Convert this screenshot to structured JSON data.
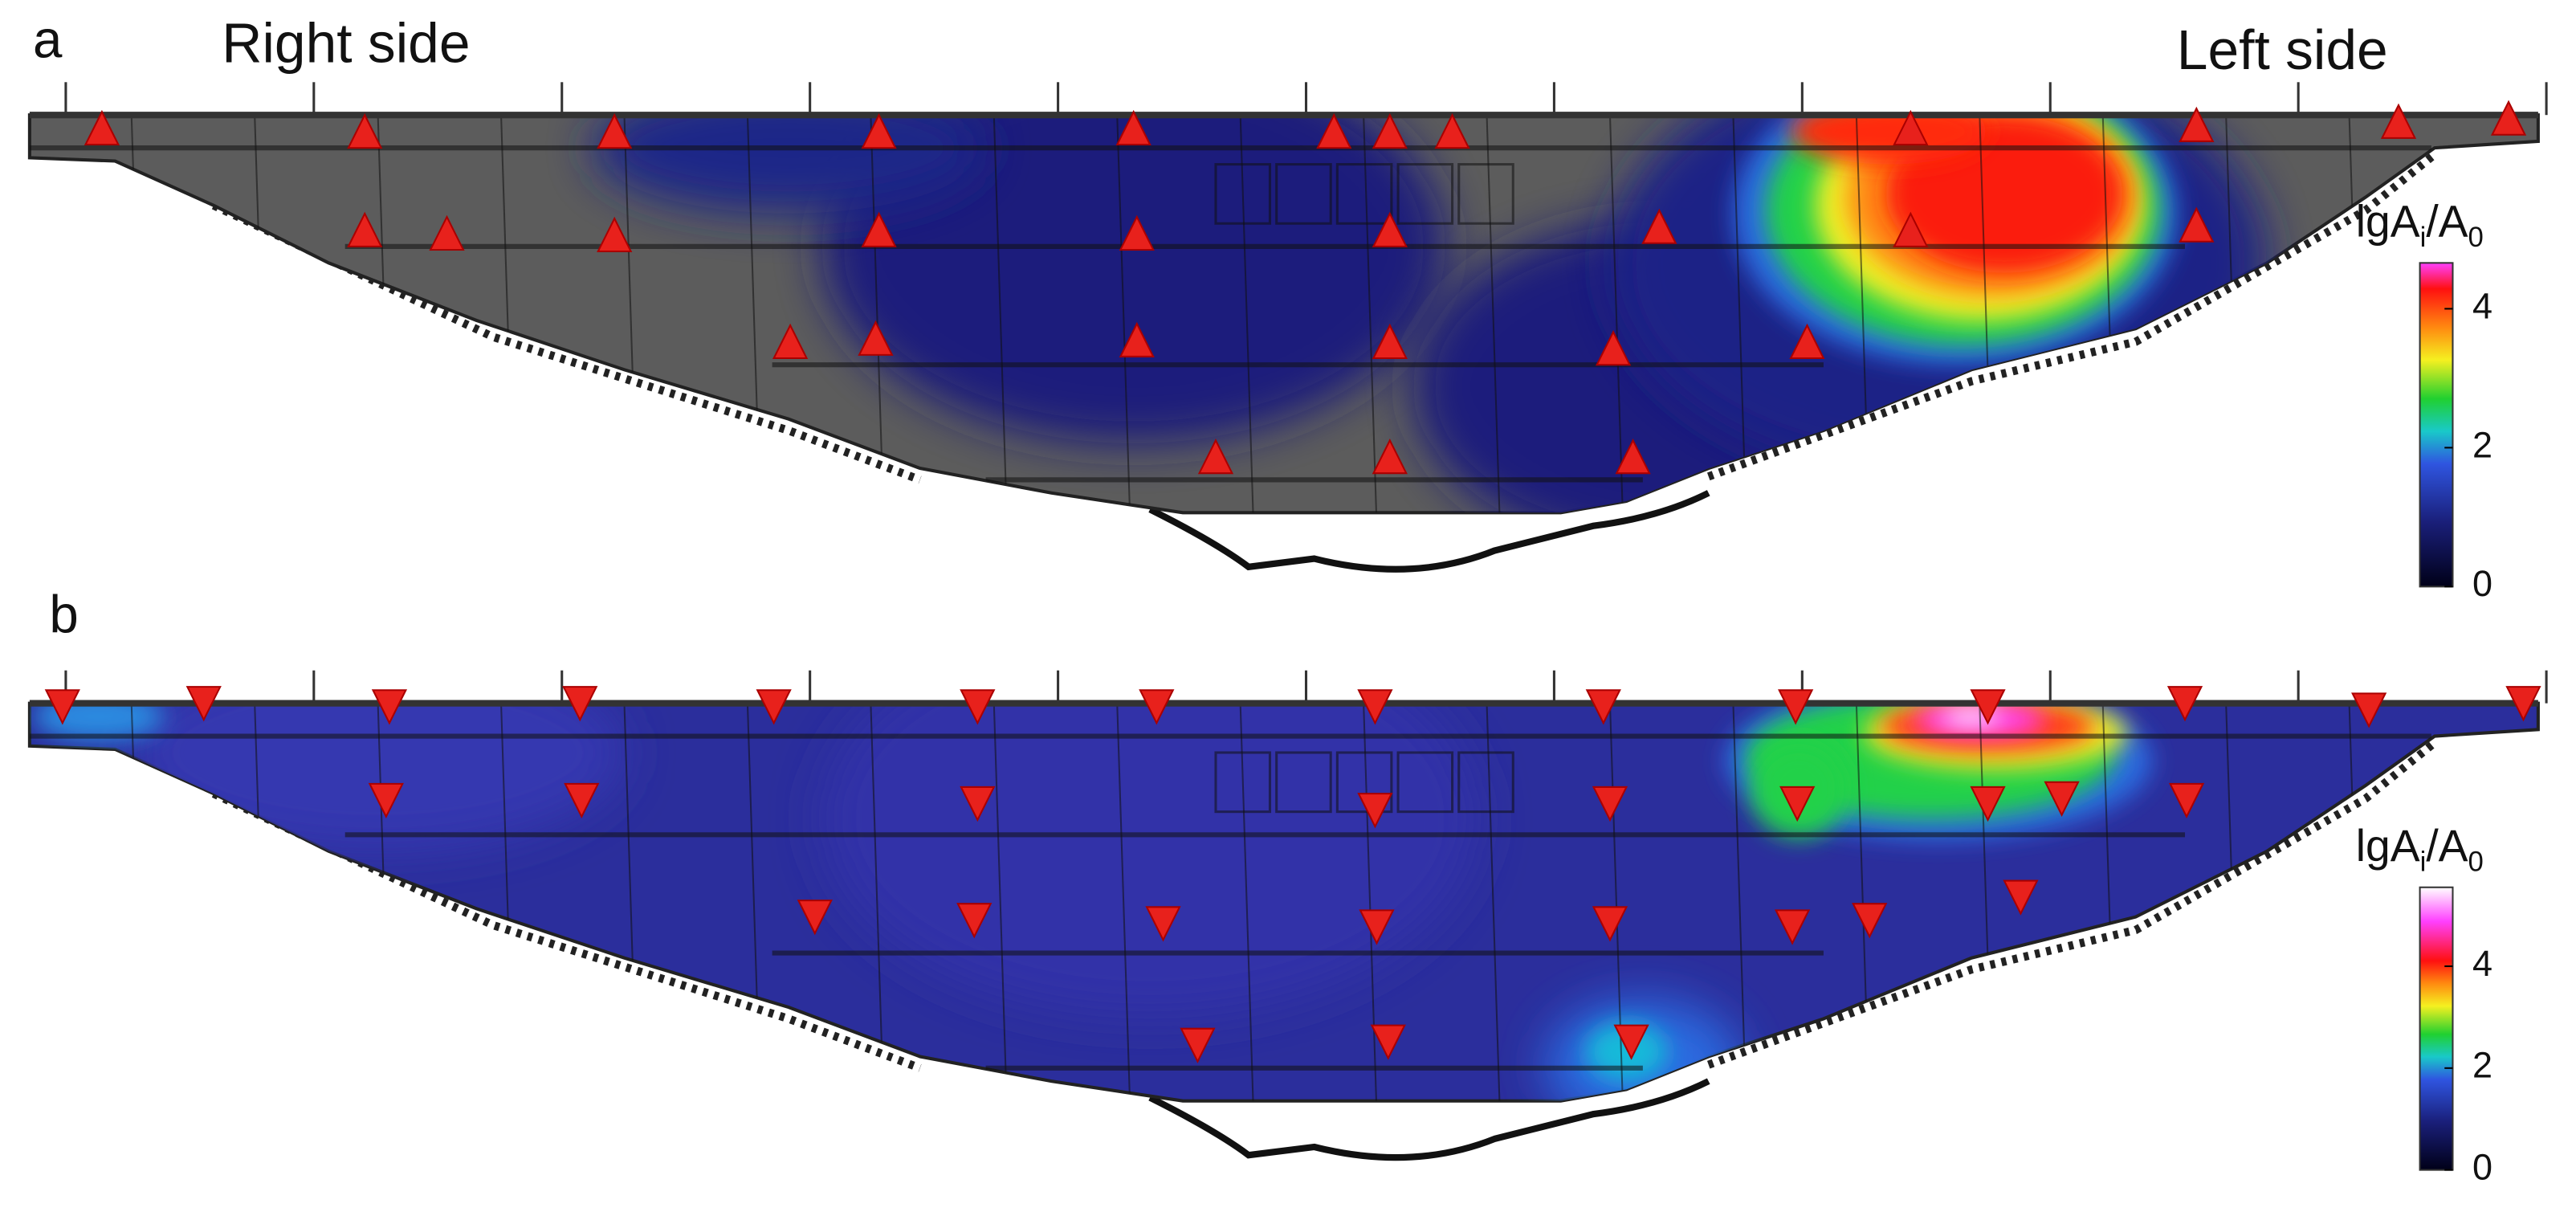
{
  "panels": [
    {
      "label": "a",
      "right_label": "Right side",
      "left_label": "Left side",
      "colorbar": {
        "title": [
          "lgA",
          "i",
          "/A",
          "0"
        ],
        "lim": [
          0,
          4.66
        ],
        "ticks": [
          0,
          2,
          4
        ]
      }
    },
    {
      "label": "b",
      "colorbar": {
        "title": [
          "lgA",
          "i",
          "/A",
          "0"
        ],
        "lim": [
          0,
          5.55
        ],
        "ticks": [
          0,
          2,
          4
        ]
      }
    }
  ]
}
